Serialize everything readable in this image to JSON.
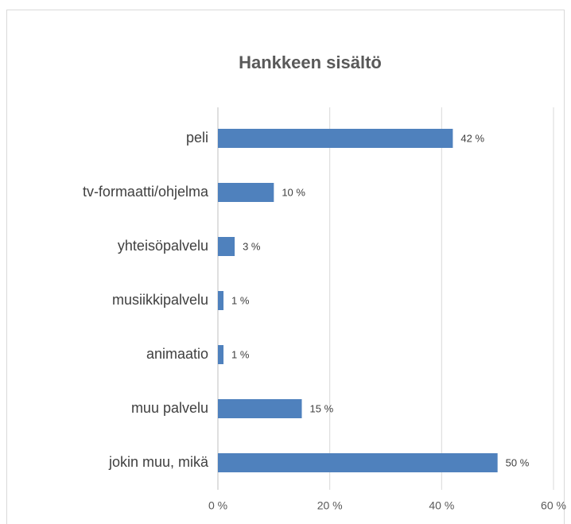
{
  "chart_data": {
    "type": "bar",
    "orientation": "horizontal",
    "title": "Hankkeen sisältö",
    "categories": [
      "peli",
      "tv-formaatti/ohjelma",
      "yhteisöpalvelu",
      "musiikkipalvelu",
      "animaatio",
      "muu palvelu",
      "jokin muu, mikä"
    ],
    "values": [
      42,
      10,
      3,
      1,
      1,
      15,
      50
    ],
    "value_labels": [
      "42 %",
      "10 %",
      "3 %",
      "1 %",
      "1 %",
      "15 %",
      "50 %"
    ],
    "color": "#4f81bd",
    "xlim": [
      0,
      60
    ],
    "xticks": [
      {
        "value": 0,
        "label": "0 %"
      },
      {
        "value": 20,
        "label": "20 %"
      },
      {
        "value": 40,
        "label": "40 %"
      },
      {
        "value": 60,
        "label": "60 %"
      }
    ],
    "grid": true
  }
}
